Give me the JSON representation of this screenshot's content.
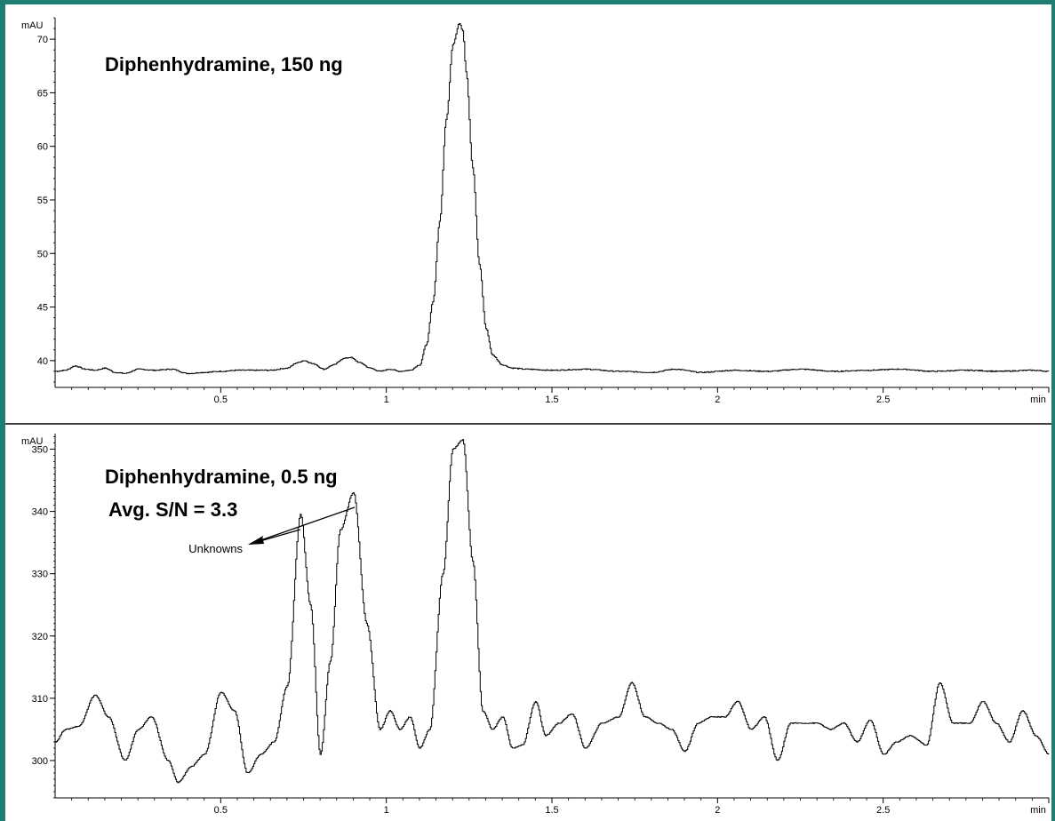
{
  "colors": {
    "frame": "#1f7d72",
    "trace": "#000000",
    "background": "#ffffff"
  },
  "chart_data": [
    {
      "type": "line",
      "title": "Diphenhydramine, 150  ng",
      "xlabel": "min",
      "ylabel": "mAU",
      "xlim": [
        0,
        3.0
      ],
      "ylim": [
        37.5,
        72
      ],
      "x_ticks": [
        "0.5",
        "1",
        "1.5",
        "2",
        "2.5"
      ],
      "y_ticks": [
        "40",
        "45",
        "50",
        "55",
        "60",
        "65",
        "70"
      ],
      "series": [
        {
          "x": [
            0.0,
            0.03,
            0.06,
            0.09,
            0.12,
            0.15,
            0.18,
            0.21,
            0.25,
            0.3,
            0.35,
            0.4,
            0.45,
            0.5,
            0.55,
            0.6,
            0.65,
            0.7,
            0.73,
            0.75,
            0.78,
            0.81,
            0.84,
            0.87,
            0.89,
            0.92,
            0.95,
            0.98,
            1.01,
            1.04,
            1.07,
            1.1,
            1.12,
            1.14,
            1.16,
            1.18,
            1.2,
            1.22,
            1.23,
            1.24,
            1.26,
            1.28,
            1.3,
            1.32,
            1.35,
            1.38,
            1.42,
            1.5,
            1.6,
            1.7,
            1.8,
            1.87,
            1.95,
            2.05,
            2.15,
            2.25,
            2.35,
            2.45,
            2.55,
            2.65,
            2.75,
            2.85,
            2.95,
            3.0
          ],
          "values": [
            39.0,
            39.1,
            39.5,
            39.2,
            39.1,
            39.3,
            38.9,
            38.8,
            39.2,
            39.1,
            39.2,
            38.8,
            38.9,
            39.0,
            39.1,
            39.1,
            39.1,
            39.3,
            39.8,
            40.0,
            39.7,
            39.2,
            39.6,
            40.2,
            40.3,
            39.8,
            39.3,
            39.0,
            39.2,
            39.0,
            39.1,
            39.6,
            41.5,
            45.5,
            53.0,
            62.5,
            69.5,
            71.5,
            70.8,
            67.0,
            58.0,
            49.0,
            43.0,
            40.5,
            39.6,
            39.3,
            39.2,
            39.1,
            39.2,
            39.0,
            38.9,
            39.2,
            38.9,
            39.1,
            39.0,
            39.2,
            39.0,
            39.1,
            39.2,
            39.0,
            39.1,
            39.0,
            39.1,
            39.0
          ]
        }
      ]
    },
    {
      "type": "line",
      "title": "Diphenhydramine, 0.5  ng",
      "subtitle": "Avg. S/N = 3.3",
      "annotation": "Unknowns",
      "xlabel": "min",
      "ylabel": "mAU",
      "xlim": [
        0,
        3.0
      ],
      "ylim": [
        294,
        352.5
      ],
      "x_ticks": [
        "0.5",
        "1",
        "1.5",
        "2",
        "2.5"
      ],
      "y_ticks": [
        "300",
        "310",
        "320",
        "330",
        "340",
        "350"
      ],
      "series": [
        {
          "x": [
            0.0,
            0.03,
            0.07,
            0.12,
            0.16,
            0.21,
            0.25,
            0.29,
            0.34,
            0.37,
            0.41,
            0.45,
            0.5,
            0.54,
            0.58,
            0.62,
            0.66,
            0.7,
            0.74,
            0.77,
            0.8,
            0.83,
            0.86,
            0.9,
            0.94,
            0.98,
            1.01,
            1.04,
            1.07,
            1.1,
            1.13,
            1.17,
            1.2,
            1.23,
            1.26,
            1.29,
            1.32,
            1.35,
            1.38,
            1.41,
            1.45,
            1.48,
            1.52,
            1.56,
            1.6,
            1.65,
            1.7,
            1.74,
            1.78,
            1.82,
            1.86,
            1.9,
            1.94,
            1.98,
            2.02,
            2.06,
            2.1,
            2.14,
            2.18,
            2.22,
            2.26,
            2.3,
            2.34,
            2.38,
            2.42,
            2.46,
            2.5,
            2.54,
            2.58,
            2.63,
            2.67,
            2.71,
            2.76,
            2.8,
            2.84,
            2.88,
            2.92,
            2.96,
            3.0
          ],
          "values": [
            303.0,
            305.0,
            305.5,
            310.5,
            307.0,
            300.0,
            305.0,
            307.0,
            300.0,
            296.5,
            299.0,
            301.0,
            311.0,
            308.0,
            298.0,
            301.0,
            303.0,
            312.0,
            339.5,
            325.0,
            301.0,
            316.0,
            337.0,
            343.0,
            322.0,
            305.0,
            308.0,
            305.0,
            307.0,
            302.0,
            305.0,
            330.0,
            350.0,
            351.5,
            332.0,
            308.0,
            305.0,
            307.0,
            302.0,
            302.5,
            309.5,
            304.0,
            306.0,
            307.5,
            302.0,
            306.0,
            307.0,
            312.5,
            307.0,
            306.0,
            305.0,
            301.5,
            306.0,
            307.0,
            307.0,
            309.5,
            305.0,
            307.0,
            300.0,
            306.0,
            306.0,
            306.0,
            305.0,
            306.0,
            303.0,
            306.5,
            301.0,
            303.0,
            304.0,
            302.5,
            312.5,
            306.0,
            306.0,
            309.5,
            306.0,
            303.0,
            308.0,
            304.0,
            301.0
          ]
        }
      ]
    }
  ]
}
